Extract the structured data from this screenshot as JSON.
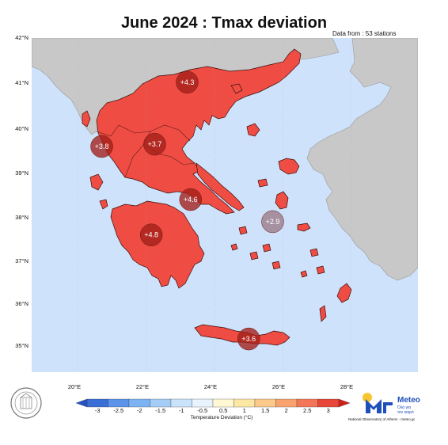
{
  "title": "June 2024 : Tmax deviation",
  "subtitle": "Data from : 53 stations",
  "map": {
    "latitude_labels": [
      "42°N",
      "41°N",
      "40°N",
      "39°N",
      "38°N",
      "37°N",
      "36°N",
      "35°N"
    ],
    "longitude_labels": [
      "20°E",
      "22°E",
      "24°E",
      "26°E",
      "28°E"
    ],
    "sea_color": "#cfe2fb",
    "land_color": "#ef4d43",
    "neighbor_color": "#c8c8c8",
    "stations": [
      {
        "label": "+4.3",
        "value": 4.3,
        "lon": 23.2,
        "lat": 41.0
      },
      {
        "label": "+3.8",
        "value": 3.8,
        "lon": 20.7,
        "lat": 39.55
      },
      {
        "label": "+3.7",
        "value": 3.7,
        "lon": 22.25,
        "lat": 39.6
      },
      {
        "label": "+4.6",
        "value": 4.6,
        "lon": 23.3,
        "lat": 38.35
      },
      {
        "label": "+2.9",
        "value": 2.9,
        "lon": 25.7,
        "lat": 37.85
      },
      {
        "label": "+4.8",
        "value": 4.8,
        "lon": 22.15,
        "lat": 37.55
      },
      {
        "label": "+3.6",
        "value": 3.6,
        "lon": 25.0,
        "lat": 35.2
      }
    ]
  },
  "colorbar": {
    "title": "Temperature Deviation (°C)",
    "ticks": [
      "-3",
      "-2.5",
      "-2",
      "-1.5",
      "-1",
      "-0.5",
      "0.5",
      "1",
      "1.5",
      "2",
      "2.5",
      "3"
    ],
    "colors": [
      "#3b6fd8",
      "#5a93e8",
      "#7db3f2",
      "#a3cdf7",
      "#c9e3fb",
      "#e8f3fd",
      "#fff8d2",
      "#fde7a4",
      "#fcc98a",
      "#f8a36f",
      "#f27657",
      "#e84638"
    ]
  },
  "logo": {
    "name": "Meteo",
    "tagline_1": "Όλα για",
    "tagline_2": "τον καιρό",
    "credit": "National Observatory of Athens - meteo.gr"
  }
}
